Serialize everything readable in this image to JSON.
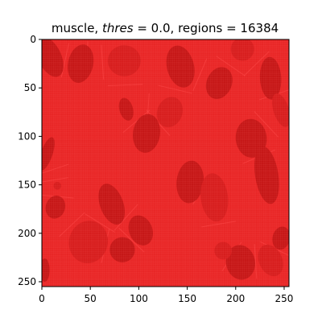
{
  "chart_data": {
    "type": "heatmap",
    "title_parts": {
      "prefix": "muscle, ",
      "thres_symbol": "thres",
      "thres_value": " = 0.0, regions = 16384"
    },
    "xlabel": "",
    "ylabel": "",
    "xlim": [
      0,
      255
    ],
    "ylim": [
      255,
      0
    ],
    "y_inverted": true,
    "grid": false,
    "legend": "none",
    "x_ticks": [
      0,
      50,
      100,
      150,
      200,
      250
    ],
    "y_ticks": [
      0,
      50,
      100,
      150,
      200,
      250
    ],
    "x_tick_labels": [
      "0",
      "50",
      "100",
      "150",
      "200",
      "250"
    ],
    "y_tick_labels": [
      "0",
      "50",
      "100",
      "150",
      "200",
      "250"
    ],
    "image_size": [
      256,
      256
    ],
    "regions": 16384,
    "region_grid": [
      128,
      128
    ],
    "threshold": 0.0,
    "colors": {
      "background": "#e82525",
      "fiber_dark": "#c41515",
      "fiber_mid": "#d61c1c",
      "boundary_lines": "#ff4a4a",
      "membrane": "#e13030"
    },
    "dark_fibers": [
      {
        "cx": 8,
        "cy": 18,
        "rx": 12,
        "ry": 22
      },
      {
        "cx": 40,
        "cy": 25,
        "rx": 13,
        "ry": 20
      },
      {
        "cx": 85,
        "cy": 22,
        "rx": 17,
        "ry": 16
      },
      {
        "cx": 143,
        "cy": 28,
        "rx": 14,
        "ry": 22
      },
      {
        "cx": 183,
        "cy": 45,
        "rx": 13,
        "ry": 17
      },
      {
        "cx": 207,
        "cy": 10,
        "rx": 12,
        "ry": 12
      },
      {
        "cx": 236,
        "cy": 40,
        "rx": 11,
        "ry": 22
      },
      {
        "cx": 87,
        "cy": 72,
        "rx": 7,
        "ry": 12
      },
      {
        "cx": 132,
        "cy": 75,
        "rx": 13,
        "ry": 16
      },
      {
        "cx": 108,
        "cy": 97,
        "rx": 14,
        "ry": 20
      },
      {
        "cx": 216,
        "cy": 102,
        "rx": 16,
        "ry": 20
      },
      {
        "cx": 247,
        "cy": 73,
        "rx": 8,
        "ry": 18
      },
      {
        "cx": 5,
        "cy": 118,
        "rx": 6,
        "ry": 18
      },
      {
        "cx": 153,
        "cy": 147,
        "rx": 14,
        "ry": 22
      },
      {
        "cx": 178,
        "cy": 163,
        "rx": 14,
        "ry": 25
      },
      {
        "cx": 72,
        "cy": 170,
        "rx": 12,
        "ry": 22
      },
      {
        "cx": 14,
        "cy": 173,
        "rx": 10,
        "ry": 12
      },
      {
        "cx": 16,
        "cy": 151,
        "rx": 4,
        "ry": 4
      },
      {
        "cx": 232,
        "cy": 140,
        "rx": 12,
        "ry": 30
      },
      {
        "cx": 102,
        "cy": 197,
        "rx": 12,
        "ry": 16
      },
      {
        "cx": 48,
        "cy": 209,
        "rx": 20,
        "ry": 22
      },
      {
        "cx": 83,
        "cy": 217,
        "rx": 13,
        "ry": 13
      },
      {
        "cx": 205,
        "cy": 230,
        "rx": 15,
        "ry": 18
      },
      {
        "cx": 236,
        "cy": 228,
        "rx": 12,
        "ry": 17
      },
      {
        "cx": 247,
        "cy": 205,
        "rx": 9,
        "ry": 12
      },
      {
        "cx": 3,
        "cy": 238,
        "rx": 5,
        "ry": 12
      },
      {
        "cx": 187,
        "cy": 218,
        "rx": 9,
        "ry": 9
      }
    ]
  }
}
